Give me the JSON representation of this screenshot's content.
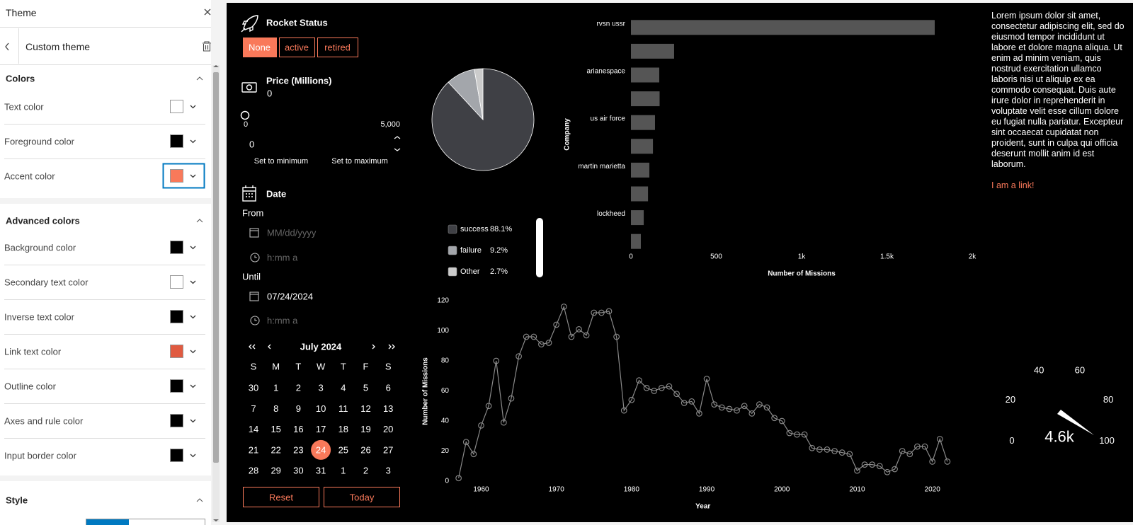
{
  "theme_panel": {
    "title": "Theme",
    "subtitle": "Custom theme",
    "sections": [
      {
        "title": "Colors",
        "rows": [
          {
            "label": "Text color",
            "color": "#ffffff"
          },
          {
            "label": "Foreground color",
            "color": "#000000"
          },
          {
            "label": "Accent color",
            "color": "#f9795a",
            "focused": true
          }
        ]
      },
      {
        "title": "Advanced colors",
        "rows": [
          {
            "label": "Background color",
            "color": "#000000"
          },
          {
            "label": "Secondary text color",
            "color": "#ffffff"
          },
          {
            "label": "Inverse text color",
            "color": "#000000"
          },
          {
            "label": "Link text color",
            "color": "#e05a40"
          },
          {
            "label": "Outline color",
            "color": "#000000"
          },
          {
            "label": "Axes and rule color",
            "color": "#000000"
          },
          {
            "label": "Input border color",
            "color": "#000000"
          }
        ]
      },
      {
        "title": "Style"
      }
    ]
  },
  "rocket_status": {
    "title": "Rocket Status",
    "options": [
      "None",
      "active",
      "retired"
    ],
    "selected": 0
  },
  "price": {
    "title": "Price (Millions)",
    "value": 0,
    "min": 0,
    "max": {
      "value": 5000,
      "label": "5,000"
    },
    "input": 0,
    "buttons": [
      "Set to minimum",
      "Set to maximum"
    ]
  },
  "date": {
    "title": "Date",
    "from_label": "From",
    "from_date_placeholder": "MM/dd/yyyy",
    "from_time_placeholder": "h:mm a",
    "until_label": "Until",
    "until_date": "07/24/2024",
    "until_time_placeholder": "h:mm a"
  },
  "calendar": {
    "month": "July 2024",
    "weekdays": [
      "S",
      "M",
      "T",
      "W",
      "T",
      "F",
      "S"
    ],
    "days": [
      30,
      1,
      2,
      3,
      4,
      5,
      6,
      7,
      8,
      9,
      10,
      11,
      12,
      13,
      14,
      15,
      16,
      17,
      18,
      19,
      20,
      21,
      22,
      23,
      24,
      25,
      26,
      27,
      28,
      29,
      30,
      31,
      1,
      2,
      3
    ],
    "selected_day": 24,
    "buttons": [
      "Reset",
      "Today"
    ]
  },
  "chart_data": [
    {
      "type": "pie",
      "categories": [
        "success",
        "failure",
        "Other"
      ],
      "values": [
        88.1,
        9.2,
        2.7
      ],
      "value_labels": [
        "88.1%",
        "9.2%",
        "2.7%"
      ],
      "colors": [
        "#3f4045",
        "#a3a6ab",
        "#cbcbcb"
      ]
    },
    {
      "type": "bar",
      "orientation": "horizontal",
      "categories": [
        "rvsn ussr",
        null,
        "arianespace",
        null,
        "us air force",
        null,
        "martin marietta",
        null,
        "lockheed",
        null
      ],
      "values": [
        1780,
        253,
        166,
        168,
        141,
        129,
        108,
        100,
        75,
        58
      ],
      "color": "#555555",
      "xlim": [
        0,
        2000
      ],
      "xticks": [
        0,
        500,
        {
          "value": 1000,
          "label": "1k"
        },
        {
          "value": 1500,
          "label": "1.5k"
        },
        {
          "value": 2000,
          "label": "2k"
        }
      ],
      "xlabel": "Number of Missions",
      "ylabel": "Company"
    },
    {
      "type": "line",
      "x": [
        1957,
        1958,
        1959,
        1960,
        1961,
        1962,
        1963,
        1964,
        1965,
        1966,
        1967,
        1968,
        1969,
        1970,
        1971,
        1972,
        1973,
        1974,
        1975,
        1976,
        1977,
        1978,
        1979,
        1980,
        1981,
        1982,
        1983,
        1984,
        1985,
        1986,
        1987,
        1988,
        1989,
        1990,
        1991,
        1992,
        1993,
        1994,
        1995,
        1996,
        1997,
        1998,
        1999,
        2000,
        2001,
        2002,
        2003,
        2004,
        2005,
        2006,
        2007,
        2008,
        2009,
        2010,
        2011,
        2012,
        2013,
        2014,
        2015,
        2016,
        2017,
        2018,
        2019,
        2020,
        2021,
        2022
      ],
      "values": [
        2,
        26,
        18,
        37,
        50,
        80,
        39,
        55,
        83,
        96,
        96,
        91,
        92,
        104,
        116,
        96,
        101,
        97,
        112,
        112,
        113,
        96,
        47,
        54,
        67,
        62,
        60,
        62,
        63,
        58,
        52,
        53,
        45,
        68,
        51,
        49,
        48,
        47,
        50,
        45,
        51,
        49,
        42,
        40,
        32,
        31,
        31,
        22,
        21,
        21,
        20,
        19,
        18,
        7,
        11,
        11,
        10,
        6,
        8,
        20,
        18,
        23,
        23,
        13,
        28,
        13
      ],
      "color": "#8a8a8a",
      "markers": true,
      "xlim": [
        1956,
        2023
      ],
      "xticks": [
        1960,
        1970,
        1980,
        1990,
        2000,
        2010,
        2020
      ],
      "ylim": [
        0,
        120
      ],
      "yticks": [
        0,
        20,
        40,
        60,
        80,
        100,
        120
      ],
      "xlabel": "Year",
      "ylabel": "Number of Missions"
    },
    {
      "type": "gauge",
      "ylim": [
        0,
        100
      ],
      "yticks": [
        0,
        20,
        40,
        60,
        80,
        100
      ],
      "values": [
        4600
      ],
      "value_labels": [
        "4.6k"
      ]
    }
  ],
  "text_panel": {
    "body": "Lorem ipsum dolor sit amet, consectetur adipiscing elit, sed do eiusmod tempor incididunt ut labore et dolore magna aliqua. Ut enim ad minim veniam, quis nostrud exercitation ullamco laboris nisi ut aliquip ex ea commodo consequat. Duis aute irure dolor in reprehenderit in voluptate velit esse cillum dolore eu fugiat nulla pariatur. Excepteur sint occaecat cupidatat non proident, sunt in culpa qui officia deserunt mollit anim id est laborum.",
    "link": "I am a link!"
  }
}
